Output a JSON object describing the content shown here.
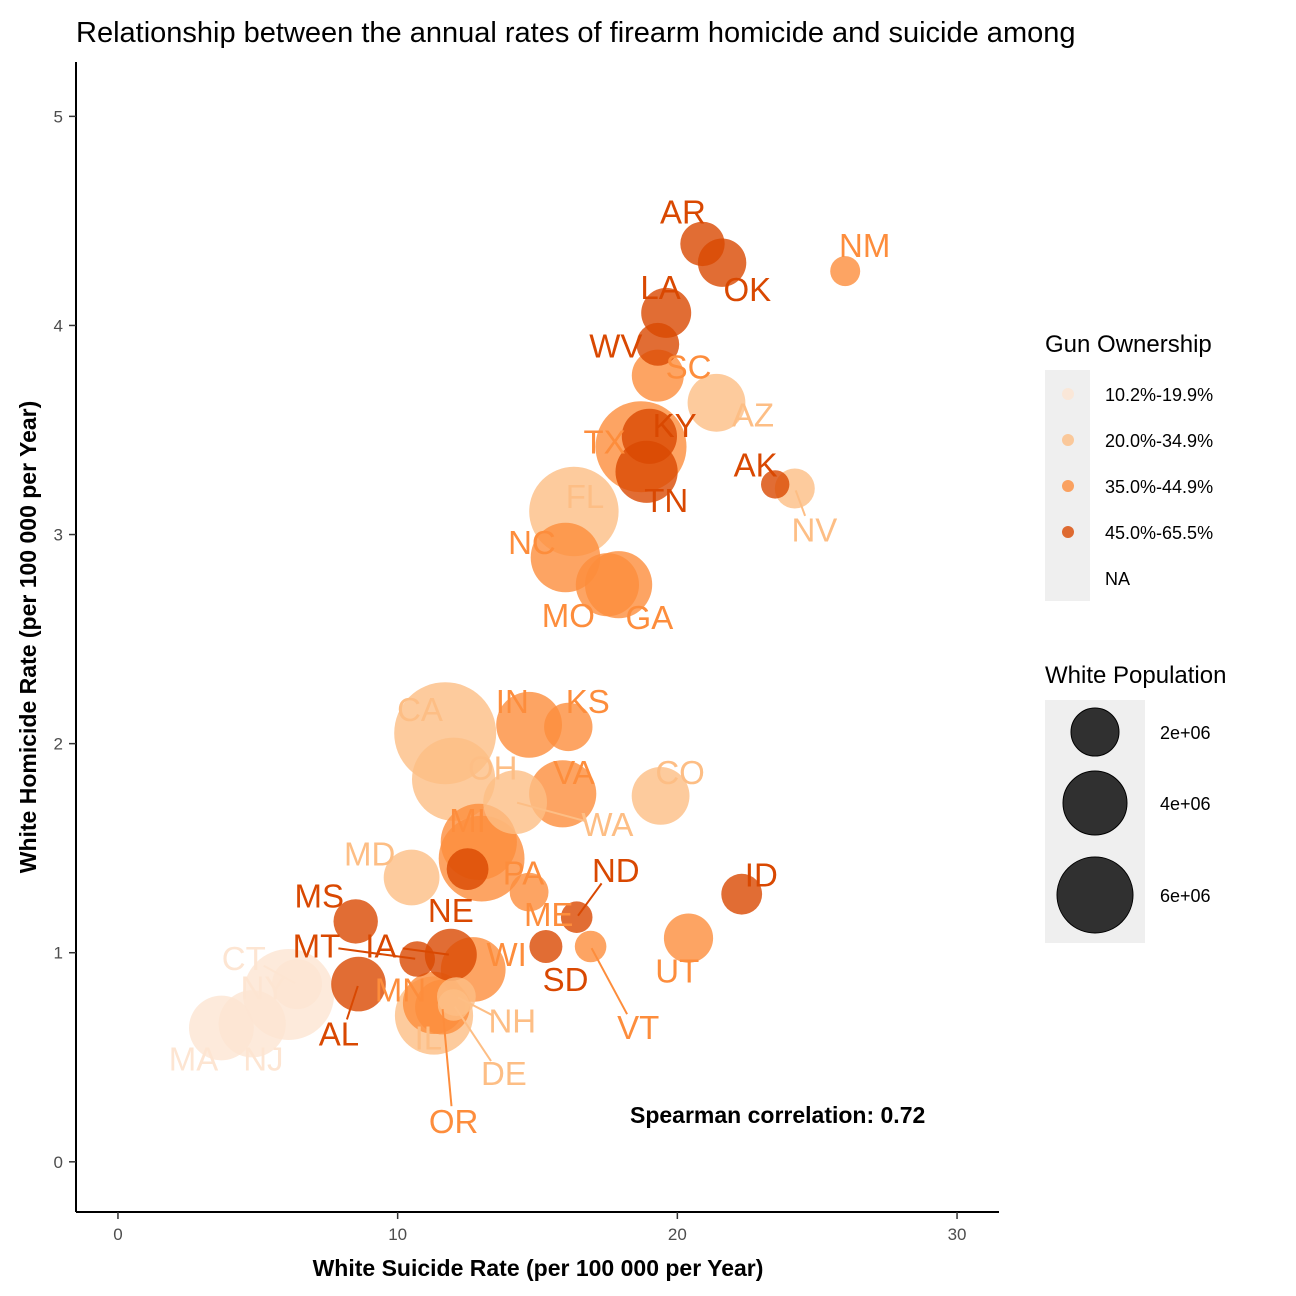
{
  "chart_data": {
    "type": "scatter",
    "title": "Relationship between the annual rates of firearm homicide and suicide among",
    "xlabel": "White Suicide Rate (per 100 000 per Year)",
    "ylabel": "White Homicide Rate (per 100 000 per Year)",
    "xlim": [
      -1.5,
      31.5
    ],
    "ylim": [
      -0.24,
      5.26
    ],
    "x_ticks": [
      0,
      10,
      20,
      30
    ],
    "y_ticks": [
      0,
      1,
      2,
      3,
      4,
      5
    ],
    "grid": false,
    "annotation": "Spearman correlation: 0.72",
    "legend_position": "right",
    "color_legend": {
      "title": "Gun Ownership",
      "items": [
        {
          "label": "10.2%-19.9%",
          "color": "#FDE5D2"
        },
        {
          "label": "20.0%-34.9%",
          "color": "#FDBE85"
        },
        {
          "label": "35.0%-44.9%",
          "color": "#FD8D3C"
        },
        {
          "label": "45.0%-65.5%",
          "color": "#D94801"
        },
        {
          "label": "NA",
          "color": ""
        }
      ]
    },
    "size_legend": {
      "title": "White Population",
      "items": [
        {
          "label": "2e+06",
          "value": 2000000
        },
        {
          "label": "4e+06",
          "value": 4000000
        },
        {
          "label": "6e+06",
          "value": 6000000
        }
      ]
    },
    "points": [
      {
        "state": "AR",
        "x": 20.9,
        "y": 4.39,
        "pop": 1800000,
        "group": 3
      },
      {
        "state": "OK",
        "x": 21.6,
        "y": 4.3,
        "pop": 2300000,
        "group": 3
      },
      {
        "state": "NM",
        "x": 26.0,
        "y": 4.26,
        "pop": 500000,
        "group": 2
      },
      {
        "state": "LA",
        "x": 19.6,
        "y": 4.06,
        "pop": 2500000,
        "group": 3
      },
      {
        "state": "WV",
        "x": 19.3,
        "y": 3.91,
        "pop": 1600000,
        "group": 3
      },
      {
        "state": "SC",
        "x": 19.3,
        "y": 3.76,
        "pop": 2800000,
        "group": 2
      },
      {
        "state": "AZ",
        "x": 21.4,
        "y": 3.63,
        "pop": 3700000,
        "group": 1
      },
      {
        "state": "KY",
        "x": 19.0,
        "y": 3.47,
        "pop": 3300000,
        "group": 3
      },
      {
        "state": "TX",
        "x": 18.7,
        "y": 3.42,
        "pop": 11500000,
        "group": 2
      },
      {
        "state": "TN",
        "x": 18.9,
        "y": 3.3,
        "pop": 4500000,
        "group": 3
      },
      {
        "state": "AK",
        "x": 23.5,
        "y": 3.24,
        "pop": 400000,
        "group": 3
      },
      {
        "state": "NV",
        "x": 24.2,
        "y": 3.22,
        "pop": 1300000,
        "group": 1
      },
      {
        "state": "FL",
        "x": 16.3,
        "y": 3.11,
        "pop": 11000000,
        "group": 1
      },
      {
        "state": "NC",
        "x": 16.0,
        "y": 2.89,
        "pop": 6000000,
        "group": 2
      },
      {
        "state": "MO",
        "x": 17.5,
        "y": 2.76,
        "pop": 4700000,
        "group": 2
      },
      {
        "state": "GA",
        "x": 17.9,
        "y": 2.76,
        "pop": 5500000,
        "group": 2
      },
      {
        "state": "CA",
        "x": 11.7,
        "y": 2.05,
        "pop": 15000000,
        "group": 1
      },
      {
        "state": "IN",
        "x": 14.7,
        "y": 2.09,
        "pop": 5200000,
        "group": 2
      },
      {
        "state": "KS",
        "x": 16.1,
        "y": 2.08,
        "pop": 2300000,
        "group": 2
      },
      {
        "state": "OH",
        "x": 12.0,
        "y": 1.83,
        "pop": 9300000,
        "group": 1
      },
      {
        "state": "VA",
        "x": 15.9,
        "y": 1.76,
        "pop": 5500000,
        "group": 2
      },
      {
        "state": "CO",
        "x": 19.4,
        "y": 1.75,
        "pop": 3700000,
        "group": 1
      },
      {
        "state": "WA",
        "x": 14.2,
        "y": 1.72,
        "pop": 4800000,
        "group": 1
      },
      {
        "state": "MI",
        "x": 12.9,
        "y": 1.53,
        "pop": 7500000,
        "group": 2
      },
      {
        "state": "PA",
        "x": 13.0,
        "y": 1.45,
        "pop": 10000000,
        "group": 2
      },
      {
        "state": "MD",
        "x": 10.5,
        "y": 1.36,
        "pop": 3400000,
        "group": 1
      },
      {
        "state": "NE",
        "x": 12.5,
        "y": 1.4,
        "pop": 1500000,
        "group": 3
      },
      {
        "state": "ND",
        "x": 16.4,
        "y": 1.17,
        "pop": 600000,
        "group": 3
      },
      {
        "state": "ID",
        "x": 22.3,
        "y": 1.28,
        "pop": 1400000,
        "group": 3
      },
      {
        "state": "ME",
        "x": 14.7,
        "y": 1.29,
        "pop": 1200000,
        "group": 2
      },
      {
        "state": "MS",
        "x": 8.5,
        "y": 1.15,
        "pop": 1800000,
        "group": 3
      },
      {
        "state": "MT",
        "x": 10.7,
        "y": 0.97,
        "pop": 900000,
        "group": 3
      },
      {
        "state": "IA",
        "x": 11.9,
        "y": 0.99,
        "pop": 2800000,
        "group": 3
      },
      {
        "state": "WI",
        "x": 12.7,
        "y": 0.92,
        "pop": 5000000,
        "group": 2
      },
      {
        "state": "SD",
        "x": 15.3,
        "y": 1.03,
        "pop": 700000,
        "group": 3
      },
      {
        "state": "VT",
        "x": 16.9,
        "y": 1.03,
        "pop": 600000,
        "group": 2
      },
      {
        "state": "UT",
        "x": 20.4,
        "y": 1.07,
        "pop": 2400000,
        "group": 2
      },
      {
        "state": "CT",
        "x": 6.4,
        "y": 0.85,
        "pop": 2500000,
        "group": 0
      },
      {
        "state": "NY",
        "x": 6.1,
        "y": 0.8,
        "pop": 11500000,
        "group": 0
      },
      {
        "state": "AL",
        "x": 8.6,
        "y": 0.85,
        "pop": 3200000,
        "group": 3
      },
      {
        "state": "MN",
        "x": 11.3,
        "y": 0.76,
        "pop": 4500000,
        "group": 2
      },
      {
        "state": "NH",
        "x": 12.1,
        "y": 0.79,
        "pop": 1200000,
        "group": 1
      },
      {
        "state": "IL",
        "x": 11.3,
        "y": 0.7,
        "pop": 8000000,
        "group": 1
      },
      {
        "state": "OR",
        "x": 11.6,
        "y": 0.74,
        "pop": 3200000,
        "group": 2
      },
      {
        "state": "DE",
        "x": 12.0,
        "y": 0.75,
        "pop": 600000,
        "group": 1
      },
      {
        "state": "MA",
        "x": 3.7,
        "y": 0.64,
        "pop": 5000000,
        "group": 0
      },
      {
        "state": "NJ",
        "x": 4.8,
        "y": 0.66,
        "pop": 5500000,
        "group": 0
      }
    ],
    "labels": [
      {
        "state": "AR",
        "lx": 20.2,
        "ly": 4.54
      },
      {
        "state": "OK",
        "lx": 22.5,
        "ly": 4.17
      },
      {
        "state": "NM",
        "lx": 26.7,
        "ly": 4.38
      },
      {
        "state": "LA",
        "lx": 19.4,
        "ly": 4.18
      },
      {
        "state": "WV",
        "lx": 17.8,
        "ly": 3.9
      },
      {
        "state": "SC",
        "lx": 20.4,
        "ly": 3.8
      },
      {
        "state": "AZ",
        "lx": 22.7,
        "ly": 3.57
      },
      {
        "state": "KY",
        "lx": 19.9,
        "ly": 3.52
      },
      {
        "state": "TX",
        "lx": 17.4,
        "ly": 3.44
      },
      {
        "state": "TN",
        "lx": 19.6,
        "ly": 3.16
      },
      {
        "state": "AK",
        "lx": 22.8,
        "ly": 3.33
      },
      {
        "state": "NV",
        "lx": 24.9,
        "ly": 3.02
      },
      {
        "state": "FL",
        "lx": 16.7,
        "ly": 3.18
      },
      {
        "state": "NC",
        "lx": 14.8,
        "ly": 2.96
      },
      {
        "state": "MO",
        "lx": 16.1,
        "ly": 2.61
      },
      {
        "state": "GA",
        "lx": 19.0,
        "ly": 2.6
      },
      {
        "state": "CA",
        "lx": 10.8,
        "ly": 2.16
      },
      {
        "state": "IN",
        "lx": 14.1,
        "ly": 2.2
      },
      {
        "state": "KS",
        "lx": 16.8,
        "ly": 2.2
      },
      {
        "state": "OH",
        "lx": 13.4,
        "ly": 1.88
      },
      {
        "state": "VA",
        "lx": 16.3,
        "ly": 1.86
      },
      {
        "state": "CO",
        "lx": 20.1,
        "ly": 1.86
      },
      {
        "state": "WA",
        "lx": 17.5,
        "ly": 1.61
      },
      {
        "state": "MI",
        "lx": 12.5,
        "ly": 1.63
      },
      {
        "state": "PA",
        "lx": 14.5,
        "ly": 1.38
      },
      {
        "state": "MD",
        "lx": 9.0,
        "ly": 1.47
      },
      {
        "state": "NE",
        "lx": 11.9,
        "ly": 1.2
      },
      {
        "state": "ND",
        "lx": 17.8,
        "ly": 1.39
      },
      {
        "state": "ID",
        "lx": 23.0,
        "ly": 1.37
      },
      {
        "state": "ME",
        "lx": 15.4,
        "ly": 1.18
      },
      {
        "state": "MS",
        "lx": 7.2,
        "ly": 1.27
      },
      {
        "state": "MT",
        "lx": 7.1,
        "ly": 1.03
      },
      {
        "state": "IA",
        "lx": 9.4,
        "ly": 1.03
      },
      {
        "state": "WI",
        "lx": 13.9,
        "ly": 0.99
      },
      {
        "state": "SD",
        "lx": 16.0,
        "ly": 0.87
      },
      {
        "state": "VT",
        "lx": 18.6,
        "ly": 0.64
      },
      {
        "state": "UT",
        "lx": 20.0,
        "ly": 0.91
      },
      {
        "state": "CT",
        "lx": 4.5,
        "ly": 0.97
      },
      {
        "state": "NY",
        "lx": 5.2,
        "ly": 0.83
      },
      {
        "state": "AL",
        "lx": 7.9,
        "ly": 0.61
      },
      {
        "state": "MN",
        "lx": 10.1,
        "ly": 0.82
      },
      {
        "state": "NH",
        "lx": 14.1,
        "ly": 0.67
      },
      {
        "state": "IL",
        "lx": 11.1,
        "ly": 0.59
      },
      {
        "state": "OR",
        "lx": 12.0,
        "ly": 0.19
      },
      {
        "state": "DE",
        "lx": 13.8,
        "ly": 0.42
      },
      {
        "state": "MA",
        "lx": 2.7,
        "ly": 0.49
      },
      {
        "state": "NJ",
        "lx": 5.2,
        "ly": 0.49
      }
    ]
  }
}
